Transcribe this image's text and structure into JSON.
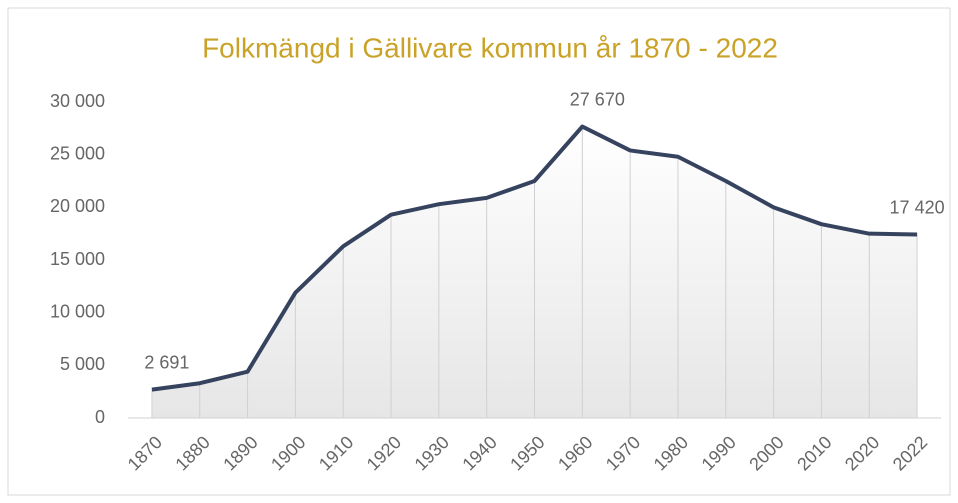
{
  "chart_data": {
    "type": "line",
    "title": "Folkmängd i Gällivare kommun år 1870 - 2022",
    "categories": [
      "1870",
      "1880",
      "1890",
      "1900",
      "1910",
      "1920",
      "1930",
      "1940",
      "1950",
      "1960",
      "1970",
      "1980",
      "1990",
      "2000",
      "2010",
      "2020",
      "2022"
    ],
    "series": [
      {
        "name": "Folkmängd",
        "color": "#36435f",
        "values": [
          2691,
          3300,
          4400,
          11900,
          16300,
          19300,
          20300,
          20900,
          22500,
          27670,
          25400,
          24800,
          22500,
          20000,
          18400,
          17500,
          17420
        ],
        "value_labels": [
          "2 691",
          null,
          null,
          null,
          null,
          null,
          null,
          null,
          null,
          "27 670",
          null,
          null,
          null,
          null,
          null,
          null,
          "17 420"
        ]
      }
    ],
    "ylim": [
      0,
      30000
    ],
    "yticks": [
      0,
      {
        "value": 5000,
        "label": "5 000"
      },
      {
        "value": 10000,
        "label": "10 000"
      },
      {
        "value": 15000,
        "label": "15 000"
      },
      {
        "value": 20000,
        "label": "20 000"
      },
      {
        "value": 25000,
        "label": "25 000"
      },
      {
        "value": 30000,
        "label": "30 000"
      }
    ],
    "title_color": "#c9a227"
  }
}
